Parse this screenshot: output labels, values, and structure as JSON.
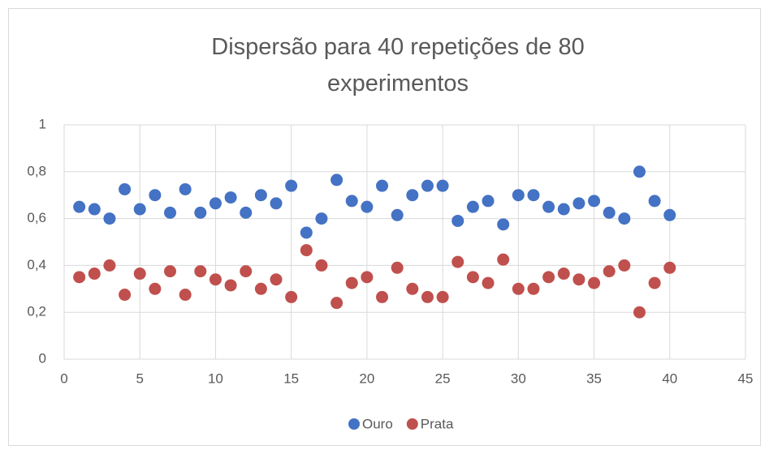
{
  "chart_data": {
    "type": "scatter",
    "title": "Dispersão para 40 repetições de 80 experimentos",
    "x": [
      1,
      2,
      3,
      4,
      5,
      6,
      7,
      8,
      9,
      10,
      11,
      12,
      13,
      14,
      15,
      16,
      17,
      18,
      19,
      20,
      21,
      22,
      23,
      24,
      25,
      26,
      27,
      28,
      29,
      30,
      31,
      32,
      33,
      34,
      35,
      36,
      37,
      38,
      39,
      40
    ],
    "series": [
      {
        "name": "Ouro",
        "color": "#4472c4",
        "values": [
          0.65,
          0.64,
          0.6,
          0.725,
          0.64,
          0.7,
          0.625,
          0.725,
          0.625,
          0.665,
          0.69,
          0.625,
          0.7,
          0.665,
          0.74,
          0.54,
          0.6,
          0.765,
          0.675,
          0.65,
          0.74,
          0.615,
          0.7,
          0.74,
          0.74,
          0.59,
          0.65,
          0.675,
          0.575,
          0.7,
          0.7,
          0.65,
          0.64,
          0.665,
          0.675,
          0.625,
          0.6,
          0.8,
          0.675,
          0.615
        ]
      },
      {
        "name": "Prata",
        "color": "#c0504d",
        "values": [
          0.35,
          0.365,
          0.4,
          0.275,
          0.365,
          0.3,
          0.375,
          0.275,
          0.375,
          0.34,
          0.315,
          0.375,
          0.3,
          0.34,
          0.265,
          0.465,
          0.4,
          0.24,
          0.325,
          0.35,
          0.265,
          0.39,
          0.3,
          0.265,
          0.265,
          0.415,
          0.35,
          0.325,
          0.425,
          0.3,
          0.3,
          0.35,
          0.365,
          0.34,
          0.325,
          0.375,
          0.4,
          0.2,
          0.325,
          0.39
        ]
      }
    ],
    "xlim": [
      0,
      45
    ],
    "xticks": [
      0,
      5,
      10,
      15,
      20,
      25,
      30,
      35,
      40,
      45
    ],
    "ylim": [
      0,
      1
    ],
    "yticks": [
      0,
      {
        "value": 0.2,
        "label": "0,2"
      },
      {
        "value": 0.4,
        "label": "0,4"
      },
      {
        "value": 0.6,
        "label": "0,6"
      },
      {
        "value": 0.8,
        "label": "0,8"
      },
      1
    ],
    "grid": true,
    "legend": "bottom"
  }
}
